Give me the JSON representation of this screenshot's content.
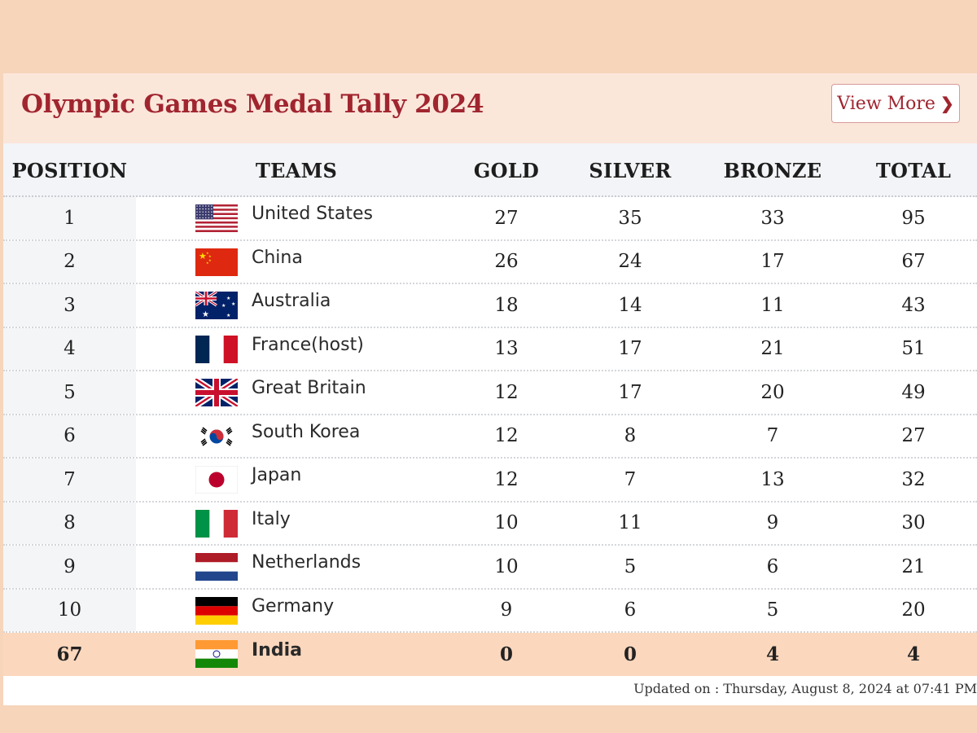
{
  "header": {
    "title": "Olympic Games Medal Tally 2024",
    "view_more_label": "View More"
  },
  "columns": {
    "position": "POSITION",
    "teams": "TEAMS",
    "gold": "GOLD",
    "silver": "SILVER",
    "bronze": "BRONZE",
    "total": "TOTAL"
  },
  "rows": [
    {
      "position": "1",
      "team": "United States",
      "flag": "usa-flag-icon",
      "gold": "27",
      "silver": "35",
      "bronze": "33",
      "total": "95"
    },
    {
      "position": "2",
      "team": "China",
      "flag": "china-flag-icon",
      "gold": "26",
      "silver": "24",
      "bronze": "17",
      "total": "67"
    },
    {
      "position": "3",
      "team": "Australia",
      "flag": "australia-flag-icon",
      "gold": "18",
      "silver": "14",
      "bronze": "11",
      "total": "43"
    },
    {
      "position": "4",
      "team": "France(host)",
      "flag": "france-flag-icon",
      "gold": "13",
      "silver": "17",
      "bronze": "21",
      "total": "51"
    },
    {
      "position": "5",
      "team": "Great Britain",
      "flag": "great-britain-flag-icon",
      "gold": "12",
      "silver": "17",
      "bronze": "20",
      "total": "49"
    },
    {
      "position": "6",
      "team": "South Korea",
      "flag": "south-korea-flag-icon",
      "gold": "12",
      "silver": "8",
      "bronze": "7",
      "total": "27"
    },
    {
      "position": "7",
      "team": "Japan",
      "flag": "japan-flag-icon",
      "gold": "12",
      "silver": "7",
      "bronze": "13",
      "total": "32"
    },
    {
      "position": "8",
      "team": "Italy",
      "flag": "italy-flag-icon",
      "gold": "10",
      "silver": "11",
      "bronze": "9",
      "total": "30"
    },
    {
      "position": "9",
      "team": "Netherlands",
      "flag": "netherlands-flag-icon",
      "gold": "10",
      "silver": "5",
      "bronze": "6",
      "total": "21"
    },
    {
      "position": "10",
      "team": "Germany",
      "flag": "germany-flag-icon",
      "gold": "9",
      "silver": "6",
      "bronze": "5",
      "total": "20"
    },
    {
      "position": "67",
      "team": "India",
      "flag": "india-flag-icon",
      "gold": "0",
      "silver": "0",
      "bronze": "4",
      "total": "4",
      "highlight": true
    }
  ],
  "footer": {
    "updated_text": "Updated on : Thursday, August 8, 2024 at 07:41 PM"
  },
  "colors": {
    "page_background": "#f6d5bb",
    "title": "#a0252f",
    "header_bar": "#fbe6da",
    "highlight_row": "#fbd7bd"
  }
}
